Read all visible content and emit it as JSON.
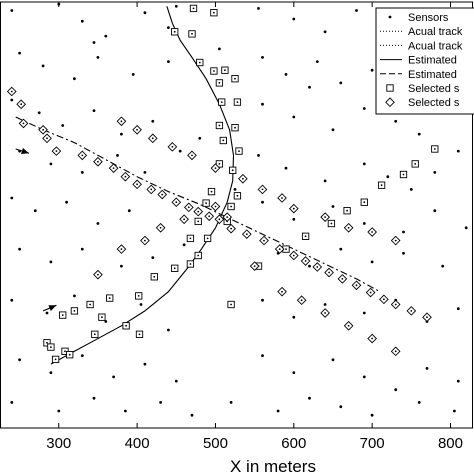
{
  "chart_data": {
    "type": "scatter",
    "title": "",
    "xlabel": "X in meters",
    "ylabel": "",
    "xlim": [
      225,
      830
    ],
    "ylim": [
      0,
      1000
    ],
    "x_ticks": [
      300,
      400,
      500,
      600,
      700,
      800
    ],
    "x_tick_labels": [
      "300",
      "400",
      "500",
      "600",
      "700",
      "800"
    ],
    "grid": false,
    "legend": {
      "placement": "top-right",
      "entries": [
        {
          "label": "Sensors",
          "marker": "dot"
        },
        {
          "label": "Acual track",
          "marker": "dotted-line"
        },
        {
          "label": "Acual track",
          "marker": "dotted-line"
        },
        {
          "label": "Estimated",
          "marker": "solid-line"
        },
        {
          "label": "Estimated",
          "marker": "dashed-line"
        },
        {
          "label": "Selected s",
          "marker": "square"
        },
        {
          "label": "Selected s",
          "marker": "diamond"
        }
      ]
    },
    "series": [
      {
        "name": "Sensors",
        "marker": "dot",
        "points": [
          [
            240,
            980
          ],
          [
            300,
            995
          ],
          [
            330,
            955
          ],
          [
            360,
            920
          ],
          [
            410,
            975
          ],
          [
            440,
            940
          ],
          [
            555,
            985
          ],
          [
            600,
            960
          ],
          [
            640,
            930
          ],
          [
            680,
            980
          ],
          [
            720,
            955
          ],
          [
            760,
            925
          ],
          [
            250,
            880
          ],
          [
            280,
            850
          ],
          [
            320,
            820
          ],
          [
            350,
            870
          ],
          [
            395,
            830
          ],
          [
            440,
            860
          ],
          [
            560,
            870
          ],
          [
            590,
            830
          ],
          [
            630,
            860
          ],
          [
            660,
            810
          ],
          [
            700,
            840
          ],
          [
            740,
            870
          ],
          [
            780,
            820
          ],
          [
            240,
            770
          ],
          [
            275,
            740
          ],
          [
            305,
            710
          ],
          [
            345,
            745
          ],
          [
            380,
            690
          ],
          [
            420,
            720
          ],
          [
            560,
            760
          ],
          [
            600,
            730
          ],
          [
            650,
            700
          ],
          [
            690,
            750
          ],
          [
            730,
            720
          ],
          [
            760,
            690
          ],
          [
            800,
            740
          ],
          [
            250,
            650
          ],
          [
            290,
            620
          ],
          [
            330,
            600
          ],
          [
            375,
            640
          ],
          [
            410,
            600
          ],
          [
            455,
            650
          ],
          [
            555,
            640
          ],
          [
            590,
            610
          ],
          [
            640,
            580
          ],
          [
            690,
            620
          ],
          [
            720,
            590
          ],
          [
            780,
            600
          ],
          [
            810,
            650
          ],
          [
            240,
            540
          ],
          [
            270,
            510
          ],
          [
            310,
            530
          ],
          [
            350,
            480
          ],
          [
            390,
            510
          ],
          [
            430,
            470
          ],
          [
            560,
            530
          ],
          [
            600,
            490
          ],
          [
            650,
            520
          ],
          [
            690,
            480
          ],
          [
            740,
            460
          ],
          [
            780,
            510
          ],
          [
            820,
            470
          ],
          [
            250,
            420
          ],
          [
            290,
            390
          ],
          [
            330,
            420
          ],
          [
            380,
            380
          ],
          [
            420,
            400
          ],
          [
            460,
            430
          ],
          [
            580,
            410
          ],
          [
            620,
            380
          ],
          [
            660,
            420
          ],
          [
            700,
            390
          ],
          [
            740,
            410
          ],
          [
            790,
            380
          ],
          [
            240,
            300
          ],
          [
            285,
            270
          ],
          [
            320,
            310
          ],
          [
            360,
            250
          ],
          [
            405,
            290
          ],
          [
            440,
            230
          ],
          [
            560,
            300
          ],
          [
            600,
            260
          ],
          [
            640,
            290
          ],
          [
            690,
            270
          ],
          [
            730,
            300
          ],
          [
            770,
            250
          ],
          [
            810,
            280
          ],
          [
            250,
            160
          ],
          [
            290,
            130
          ],
          [
            330,
            170
          ],
          [
            370,
            120
          ],
          [
            410,
            150
          ],
          [
            450,
            110
          ],
          [
            560,
            170
          ],
          [
            600,
            130
          ],
          [
            650,
            160
          ],
          [
            690,
            120
          ],
          [
            730,
            90
          ],
          [
            770,
            140
          ],
          [
            810,
            110
          ],
          [
            240,
            60
          ],
          [
            300,
            40
          ],
          [
            345,
            70
          ],
          [
            385,
            40
          ],
          [
            430,
            60
          ],
          [
            470,
            30
          ],
          [
            520,
            60
          ],
          [
            580,
            40
          ],
          [
            620,
            70
          ],
          [
            660,
            50
          ],
          [
            700,
            30
          ],
          [
            760,
            60
          ],
          [
            805,
            40
          ],
          [
            450,
            990
          ],
          [
            345,
            905
          ],
          [
            620,
            800
          ],
          [
            750,
            560
          ],
          [
            505,
            890
          ],
          [
            480,
            680
          ],
          [
            525,
            560
          ]
        ]
      },
      {
        "name": "Selected s",
        "marker": "square",
        "points": [
          [
            482,
            998
          ],
          [
            472,
            985
          ],
          [
            498,
            975
          ],
          [
            448,
            930
          ],
          [
            470,
            925
          ],
          [
            480,
            858
          ],
          [
            498,
            838
          ],
          [
            512,
            840
          ],
          [
            505,
            810
          ],
          [
            525,
            820
          ],
          [
            508,
            765
          ],
          [
            528,
            765
          ],
          [
            505,
            710
          ],
          [
            525,
            705
          ],
          [
            510,
            675
          ],
          [
            530,
            650
          ],
          [
            505,
            620
          ],
          [
            522,
            605
          ],
          [
            528,
            545
          ],
          [
            495,
            555
          ],
          [
            488,
            528
          ],
          [
            520,
            520
          ],
          [
            515,
            485
          ],
          [
            478,
            485
          ],
          [
            490,
            445
          ],
          [
            468,
            445
          ],
          [
            478,
            405
          ],
          [
            468,
            385
          ],
          [
            448,
            375
          ],
          [
            422,
            355
          ],
          [
            402,
            310
          ],
          [
            365,
            305
          ],
          [
            340,
            290
          ],
          [
            305,
            265
          ],
          [
            320,
            275
          ],
          [
            285,
            200
          ],
          [
            290,
            190
          ],
          [
            308,
            180
          ],
          [
            314,
            172
          ],
          [
            296,
            161
          ],
          [
            346,
            220
          ],
          [
            355,
            260
          ],
          [
            386,
            240
          ],
          [
            403,
            220
          ],
          [
            520,
            290
          ],
          [
            555,
            380
          ],
          [
            590,
            420
          ],
          [
            615,
            450
          ],
          [
            648,
            480
          ],
          [
            668,
            510
          ],
          [
            690,
            530
          ],
          [
            712,
            570
          ],
          [
            740,
            595
          ],
          [
            755,
            620
          ],
          [
            780,
            655
          ]
        ]
      },
      {
        "name": "Selected s",
        "marker": "diamond",
        "points": [
          [
            240,
            790
          ],
          [
            252,
            760
          ],
          [
            255,
            715
          ],
          [
            280,
            700
          ],
          [
            285,
            680
          ],
          [
            297,
            650
          ],
          [
            330,
            640
          ],
          [
            350,
            625
          ],
          [
            370,
            610
          ],
          [
            385,
            590
          ],
          [
            400,
            572
          ],
          [
            418,
            560
          ],
          [
            432,
            548
          ],
          [
            450,
            530
          ],
          [
            466,
            518
          ],
          [
            478,
            508
          ],
          [
            492,
            497
          ],
          [
            505,
            490
          ],
          [
            515,
            495
          ],
          [
            520,
            468
          ],
          [
            540,
            455
          ],
          [
            562,
            440
          ],
          [
            582,
            420
          ],
          [
            600,
            405
          ],
          [
            615,
            392
          ],
          [
            630,
            378
          ],
          [
            645,
            365
          ],
          [
            662,
            350
          ],
          [
            680,
            335
          ],
          [
            698,
            318
          ],
          [
            715,
            302
          ],
          [
            730,
            290
          ],
          [
            750,
            275
          ],
          [
            770,
            260
          ],
          [
            550,
            380
          ],
          [
            585,
            320
          ],
          [
            610,
            300
          ],
          [
            640,
            270
          ],
          [
            670,
            240
          ],
          [
            700,
            210
          ],
          [
            730,
            180
          ],
          [
            350,
            360
          ],
          [
            380,
            420
          ],
          [
            410,
            440
          ],
          [
            430,
            470
          ],
          [
            460,
            490
          ],
          [
            500,
            520
          ],
          [
            380,
            720
          ],
          [
            400,
            700
          ],
          [
            420,
            680
          ],
          [
            445,
            660
          ],
          [
            470,
            640
          ],
          [
            500,
            610
          ],
          [
            535,
            585
          ],
          [
            560,
            560
          ],
          [
            585,
            540
          ],
          [
            600,
            515
          ],
          [
            640,
            495
          ],
          [
            670,
            470
          ],
          [
            700,
            460
          ],
          [
            730,
            440
          ]
        ]
      },
      {
        "name": "Estimated",
        "style": "solid",
        "points": [
          [
            290,
            150
          ],
          [
            315,
            175
          ],
          [
            345,
            205
          ],
          [
            380,
            240
          ],
          [
            410,
            275
          ],
          [
            440,
            320
          ],
          [
            462,
            370
          ],
          [
            482,
            420
          ],
          [
            500,
            470
          ],
          [
            515,
            530
          ],
          [
            522,
            580
          ],
          [
            523,
            640
          ],
          [
            518,
            700
          ],
          [
            505,
            760
          ],
          [
            488,
            820
          ],
          [
            470,
            870
          ],
          [
            455,
            910
          ],
          [
            445,
            950
          ],
          [
            438,
            990
          ]
        ]
      },
      {
        "name": "Estimated",
        "style": "dashed",
        "points": [
          [
            245,
            730
          ],
          [
            280,
            700
          ],
          [
            320,
            670
          ],
          [
            360,
            630
          ],
          [
            400,
            590
          ],
          [
            440,
            555
          ],
          [
            480,
            525
          ],
          [
            520,
            490
          ],
          [
            560,
            455
          ],
          [
            600,
            420
          ],
          [
            640,
            385
          ],
          [
            680,
            350
          ],
          [
            710,
            320
          ]
        ]
      }
    ],
    "annotations": [
      {
        "type": "arrow",
        "from": [
          245,
          655
        ],
        "to": [
          262,
          645
        ]
      },
      {
        "type": "arrow",
        "from": [
          280,
          275
        ],
        "to": [
          297,
          288
        ]
      }
    ]
  }
}
